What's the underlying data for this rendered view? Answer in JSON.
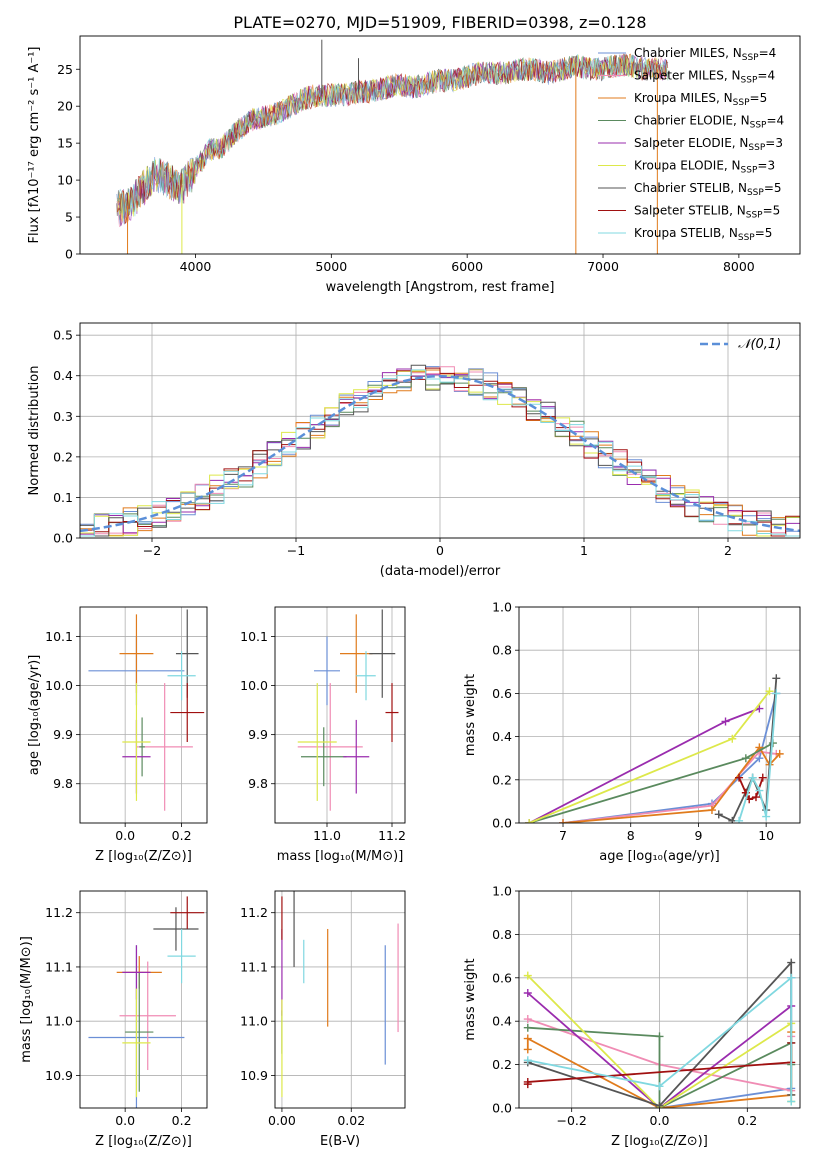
{
  "title": "PLATE=0270, MJD=51909, FIBERID=0398, z=0.128",
  "colors": {
    "Chabrier MILES": "#6b8fd6",
    "Salpeter MILES": "#f08cb4",
    "Kroupa MILES": "#e07b1c",
    "Chabrier ELODIE": "#5a8a5e",
    "Salpeter ELODIE": "#9a2cae",
    "Kroupa ELODIE": "#dde84a",
    "Chabrier STELIB": "#555555",
    "Salpeter STELIB": "#a01010",
    "Kroupa STELIB": "#80d8e0",
    "normal": "#5b8fd8"
  },
  "chart_data": [
    {
      "id": "spectrum",
      "type": "line",
      "xlabel": "wavelength [Angstrom, rest frame]",
      "ylabel": "Flux [fλ10⁻¹⁷ erg cm⁻² s⁻¹ A⁻¹]",
      "xlim": [
        3150,
        8450
      ],
      "ylim": [
        0,
        29.5
      ],
      "xticks": [
        4000,
        5000,
        6000,
        7000,
        8000
      ],
      "yticks": [
        0,
        5,
        10,
        15,
        20,
        25
      ],
      "grid": false,
      "legend_position": "top-right",
      "legend": [
        "Chabrier MILES, N_SSP=4",
        "Salpeter MILES, N_SSP=4",
        "Kroupa MILES, N_SSP=5",
        "Chabrier ELODIE, N_SSP=4",
        "Salpeter ELODIE, N_SSP=3",
        "Kroupa ELODIE, N_SSP=3",
        "Chabrier STELIB, N_SSP=5",
        "Salpeter STELIB, N_SSP=5",
        "Kroupa STELIB, N_SSP=5"
      ],
      "continuum": {
        "x": [
          3400,
          3500,
          3600,
          3700,
          3800,
          3900,
          4000,
          4100,
          4200,
          4300,
          4400,
          4500,
          4600,
          4700,
          4800,
          4900,
          5000,
          5100,
          5200,
          5300,
          5400,
          5500,
          5600,
          5700,
          5800,
          5900,
          6000,
          6100,
          6200,
          6300,
          6400,
          6500,
          6600,
          6700,
          6800,
          6900,
          7000,
          7100,
          7200,
          7300,
          7400,
          7500
        ],
        "y": [
          6,
          6.5,
          8.5,
          11,
          10,
          9,
          11.5,
          14,
          14.5,
          16.5,
          18,
          18.5,
          19,
          20,
          21,
          21.5,
          21.5,
          21.5,
          22,
          22,
          22.5,
          23,
          22.5,
          23,
          23.5,
          23.5,
          24,
          24.5,
          24.5,
          24.5,
          25,
          25,
          24.5,
          25,
          25.5,
          25,
          25,
          25.5,
          25.5,
          25,
          25,
          25
        ]
      },
      "spikes": [
        {
          "x": 4930,
          "y": 29
        },
        {
          "x": 5200,
          "y": 26.5
        },
        {
          "x": 6800,
          "y": 0
        },
        {
          "x": 7400,
          "y": 0
        },
        {
          "x": 3900,
          "y": 0
        },
        {
          "x": 3500,
          "y": 0
        }
      ]
    },
    {
      "id": "residuals",
      "type": "histogram",
      "xlabel": "(data-model)/error",
      "ylabel": "Normed distribution",
      "xlim": [
        -2.5,
        2.5
      ],
      "ylim": [
        0,
        0.53
      ],
      "xticks": [
        -2,
        -1,
        0,
        1,
        2
      ],
      "yticks": [
        0.0,
        0.1,
        0.2,
        0.3,
        0.4,
        0.5
      ],
      "grid": true,
      "legend_position": "top-right",
      "legend": [
        "𝒩(0,1)"
      ],
      "bin_width": 0.1
    },
    {
      "id": "age_vs_Z",
      "type": "errorbar",
      "xlabel": "Z [log₁₀(Z/Z⊙)]",
      "ylabel": "age  [log₁₀(age/yr)]",
      "xlim": [
        -0.16,
        0.29
      ],
      "ylim": [
        9.72,
        10.16
      ],
      "xticks": [
        0.0,
        0.2
      ],
      "yticks": [
        9.8,
        9.9,
        10.0,
        10.1
      ],
      "grid": true,
      "points": [
        {
          "model": "Chabrier MILES",
          "x": 0.04,
          "y": 10.03,
          "xerr": 0.17,
          "yerr": 0.07
        },
        {
          "model": "Salpeter MILES",
          "x": 0.14,
          "y": 9.875,
          "xerr": 0.1,
          "yerr": 0.13
        },
        {
          "model": "Kroupa MILES",
          "x": 0.04,
          "y": 10.065,
          "xerr": 0.06,
          "yerr": 0.08
        },
        {
          "model": "Chabrier ELODIE",
          "x": 0.06,
          "y": 9.875,
          "xerr": 0.01,
          "yerr": 0.06
        },
        {
          "model": "Salpeter ELODIE",
          "x": 0.04,
          "y": 9.855,
          "xerr": 0.05,
          "yerr": 0.075
        },
        {
          "model": "Kroupa ELODIE",
          "x": 0.04,
          "y": 9.885,
          "xerr": 0.05,
          "yerr": 0.12
        },
        {
          "model": "Chabrier STELIB",
          "x": 0.22,
          "y": 10.065,
          "xerr": 0.04,
          "yerr": 0.09
        },
        {
          "model": "Salpeter STELIB",
          "x": 0.22,
          "y": 9.945,
          "xerr": 0.06,
          "yerr": 0.06
        },
        {
          "model": "Kroupa STELIB",
          "x": 0.2,
          "y": 10.02,
          "xerr": 0.05,
          "yerr": 0.05
        }
      ]
    },
    {
      "id": "age_vs_mass",
      "type": "errorbar",
      "xlabel": "mass [log₁₀(M/M⊙)]",
      "ylabel": "",
      "xlim": [
        10.84,
        11.24
      ],
      "ylim": [
        9.72,
        10.16
      ],
      "xticks": [
        11.0,
        11.2
      ],
      "yticks": [
        9.8,
        9.9,
        10.0,
        10.1
      ],
      "grid": true,
      "points": [
        {
          "model": "Chabrier MILES",
          "x": 11.0,
          "y": 10.03,
          "xerr": 0.04,
          "yerr": 0.07
        },
        {
          "model": "Salpeter MILES",
          "x": 11.01,
          "y": 9.875,
          "xerr": 0.1,
          "yerr": 0.13
        },
        {
          "model": "Kroupa MILES",
          "x": 11.09,
          "y": 10.065,
          "xerr": 0.05,
          "yerr": 0.08
        },
        {
          "model": "Chabrier ELODIE",
          "x": 10.99,
          "y": 9.855,
          "xerr": 0.07,
          "yerr": 0.06
        },
        {
          "model": "Salpeter ELODIE",
          "x": 11.09,
          "y": 9.855,
          "xerr": 0.04,
          "yerr": 0.075
        },
        {
          "model": "Kroupa ELODIE",
          "x": 10.97,
          "y": 9.885,
          "xerr": 0.06,
          "yerr": 0.12
        },
        {
          "model": "Chabrier STELIB",
          "x": 11.17,
          "y": 10.065,
          "xerr": 0.04,
          "yerr": 0.09
        },
        {
          "model": "Salpeter STELIB",
          "x": 11.2,
          "y": 9.945,
          "xerr": 0.02,
          "yerr": 0.06
        },
        {
          "model": "Kroupa STELIB",
          "x": 11.12,
          "y": 10.02,
          "xerr": 0.03,
          "yerr": 0.05
        }
      ]
    },
    {
      "id": "weight_vs_age",
      "type": "line",
      "xlabel": "age  [log₁₀(age/yr)]",
      "ylabel": "mass weight",
      "xlim": [
        6.35,
        10.5
      ],
      "ylim": [
        0,
        1.0
      ],
      "xticks": [
        7,
        8,
        9,
        10
      ],
      "yticks": [
        0.0,
        0.2,
        0.4,
        0.6,
        0.8,
        1.0
      ],
      "grid": true,
      "series": [
        {
          "model": "Chabrier MILES",
          "x": [
            7.0,
            9.2,
            9.9,
            10.15
          ],
          "y": [
            0.0,
            0.09,
            0.3,
            0.6
          ]
        },
        {
          "model": "Salpeter MILES",
          "x": [
            7.0,
            9.2,
            9.9,
            10.15
          ],
          "y": [
            0.0,
            0.08,
            0.33,
            0.32
          ]
        },
        {
          "model": "Kroupa MILES",
          "x": [
            7.0,
            9.2,
            9.9,
            10.05,
            10.2
          ],
          "y": [
            0.0,
            0.06,
            0.35,
            0.27,
            0.32
          ]
        },
        {
          "model": "Chabrier ELODIE",
          "x": [
            6.5,
            9.7,
            10.1
          ],
          "y": [
            0.0,
            0.3,
            0.37
          ]
        },
        {
          "model": "Salpeter ELODIE",
          "x": [
            6.5,
            9.4,
            9.9
          ],
          "y": [
            0.0,
            0.47,
            0.53
          ]
        },
        {
          "model": "Kroupa ELODIE",
          "x": [
            6.5,
            9.5,
            10.05
          ],
          "y": [
            0.0,
            0.39,
            0.61
          ]
        },
        {
          "model": "Chabrier STELIB",
          "x": [
            9.3,
            9.5,
            9.8,
            10.0,
            10.15
          ],
          "y": [
            0.04,
            0.01,
            0.21,
            0.06,
            0.67
          ]
        },
        {
          "model": "Salpeter STELIB",
          "x": [
            9.6,
            9.7,
            9.75,
            9.85,
            9.95
          ],
          "y": [
            0.21,
            0.14,
            0.11,
            0.12,
            0.21
          ]
        },
        {
          "model": "Kroupa STELIB",
          "x": [
            9.6,
            9.8,
            9.9,
            10.0,
            10.15
          ],
          "y": [
            0.01,
            0.21,
            0.15,
            0.03,
            0.6
          ]
        }
      ]
    },
    {
      "id": "mass_vs_Z",
      "type": "errorbar",
      "xlabel": "Z [log₁₀(Z/Z⊙)]",
      "ylabel": "mass [log₁₀(M/M⊙)]",
      "xlim": [
        -0.16,
        0.29
      ],
      "ylim": [
        10.84,
        11.24
      ],
      "xticks": [
        0.0,
        0.2
      ],
      "yticks": [
        10.9,
        11.0,
        11.1,
        11.2
      ],
      "grid": true,
      "points": [
        {
          "model": "Chabrier MILES",
          "x": 0.04,
          "y": 10.97,
          "xerr": 0.17,
          "yerr": 0.17
        },
        {
          "model": "Salpeter MILES",
          "x": 0.08,
          "y": 11.01,
          "xerr": 0.1,
          "yerr": 0.1
        },
        {
          "model": "Kroupa MILES",
          "x": 0.05,
          "y": 11.09,
          "xerr": 0.08,
          "yerr": 0.03
        },
        {
          "model": "Chabrier ELODIE",
          "x": 0.05,
          "y": 10.98,
          "xerr": 0.05,
          "yerr": 0.11
        },
        {
          "model": "Salpeter ELODIE",
          "x": 0.04,
          "y": 11.09,
          "xerr": 0.05,
          "yerr": 0.05
        },
        {
          "model": "Kroupa ELODIE",
          "x": 0.04,
          "y": 10.96,
          "xerr": 0.05,
          "yerr": 0.1
        },
        {
          "model": "Chabrier STELIB",
          "x": 0.18,
          "y": 11.17,
          "xerr": 0.08,
          "yerr": 0.04
        },
        {
          "model": "Salpeter STELIB",
          "x": 0.22,
          "y": 11.2,
          "xerr": 0.06,
          "yerr": 0.03
        },
        {
          "model": "Kroupa STELIB",
          "x": 0.2,
          "y": 11.12,
          "xerr": 0.05,
          "yerr": 0.05
        }
      ]
    },
    {
      "id": "mass_vs_EBV",
      "type": "errorbar",
      "xlabel": "E(B-V)",
      "ylabel": "",
      "xlim": [
        -0.002,
        0.0355
      ],
      "ylim": [
        10.84,
        11.24
      ],
      "xticks": [
        0.0,
        0.02
      ],
      "yticks": [
        10.9,
        11.0,
        11.1,
        11.2
      ],
      "grid": true,
      "points": [
        {
          "model": "Chabrier MILES",
          "x": 0.0298,
          "y": 11.03,
          "xerr": 0,
          "yerr": 0.11
        },
        {
          "model": "Salpeter MILES",
          "x": 0.0335,
          "y": 11.08,
          "xerr": 0,
          "yerr": 0.1
        },
        {
          "model": "Kroupa MILES",
          "x": 0.0132,
          "y": 11.08,
          "xerr": 0,
          "yerr": 0.09
        },
        {
          "model": "Chabrier ELODIE",
          "x": 0.0,
          "y": 10.98,
          "xerr": 0,
          "yerr": 0.04
        },
        {
          "model": "Salpeter ELODIE",
          "x": 0.0,
          "y": 11.09,
          "xerr": 0,
          "yerr": 0.08
        },
        {
          "model": "Kroupa ELODIE",
          "x": 0.0,
          "y": 10.95,
          "xerr": 0,
          "yerr": 0.09
        },
        {
          "model": "Chabrier STELIB",
          "x": 0.0035,
          "y": 11.17,
          "xerr": 0,
          "yerr": 0.07
        },
        {
          "model": "Salpeter STELIB",
          "x": 0.0,
          "y": 11.19,
          "xerr": 0,
          "yerr": 0.04
        },
        {
          "model": "Kroupa STELIB",
          "x": 0.0063,
          "y": 11.11,
          "xerr": 0,
          "yerr": 0.04
        }
      ]
    },
    {
      "id": "weight_vs_Z",
      "type": "line",
      "xlabel": "Z [log₁₀(Z/Z⊙)]",
      "ylabel": "mass weight",
      "xlim": [
        -0.32,
        0.32
      ],
      "ylim": [
        0,
        1.0
      ],
      "xticks": [
        -0.2,
        0.0,
        0.2
      ],
      "yticks": [
        0.0,
        0.2,
        0.4,
        0.6,
        0.8,
        1.0
      ],
      "grid": true,
      "series": [
        {
          "model": "Chabrier MILES",
          "x": [
            0.0,
            0.3,
            0.3
          ],
          "y": [
            0.0,
            0.09,
            0.6
          ]
        },
        {
          "model": "Salpeter MILES",
          "x": [
            -0.3,
            0.0,
            0.3,
            0.3
          ],
          "y": [
            0.41,
            0.2,
            0.08,
            0.33
          ]
        },
        {
          "model": "Kroupa MILES",
          "x": [
            -0.3,
            -0.3,
            0.0,
            0.3,
            0.3
          ],
          "y": [
            0.27,
            0.32,
            0.0,
            0.06,
            0.35
          ]
        },
        {
          "model": "Chabrier ELODIE",
          "x": [
            -0.3,
            0.0,
            0.0,
            0.3,
            0.3
          ],
          "y": [
            0.37,
            0.33,
            0.0,
            0.3,
            0.2
          ]
        },
        {
          "model": "Salpeter ELODIE",
          "x": [
            -0.3,
            0.0,
            0.3
          ],
          "y": [
            0.53,
            0.0,
            0.47
          ]
        },
        {
          "model": "Kroupa ELODIE",
          "x": [
            -0.3,
            0.0,
            0.3,
            0.3
          ],
          "y": [
            0.61,
            0.0,
            0.39,
            0.03
          ]
        },
        {
          "model": "Chabrier STELIB",
          "x": [
            -0.3,
            0.0,
            0.3,
            0.3
          ],
          "y": [
            0.21,
            0.01,
            0.67,
            0.06
          ]
        },
        {
          "model": "Salpeter STELIB",
          "x": [
            -0.3,
            -0.3,
            0.3,
            0.3
          ],
          "y": [
            0.11,
            0.12,
            0.21,
            0.3
          ]
        },
        {
          "model": "Kroupa STELIB",
          "x": [
            -0.3,
            0.0,
            0.3,
            0.3
          ],
          "y": [
            0.22,
            0.1,
            0.6,
            0.03
          ]
        }
      ]
    }
  ]
}
